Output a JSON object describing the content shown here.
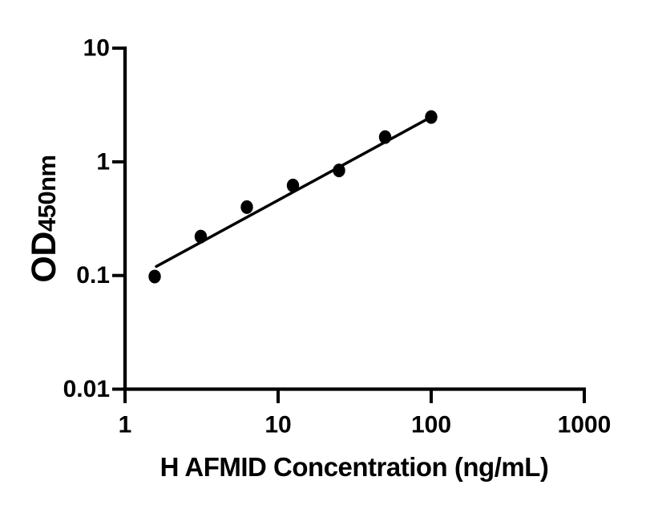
{
  "colors": {
    "ink": "#000000",
    "background": "#ffffff"
  },
  "chart_data": {
    "type": "scatter",
    "title": "",
    "xlabel": "H AFMID Concentration (ng/mL)",
    "ylabel_base": "OD",
    "ylabel_subscript": "450nm",
    "x_scale": "log10",
    "y_scale": "log10",
    "xlim": [
      1,
      1000
    ],
    "ylim": [
      0.01,
      10
    ],
    "grid": false,
    "legend": false,
    "x_ticks": [
      {
        "value": 1,
        "label": "1"
      },
      {
        "value": 10,
        "label": "10"
      },
      {
        "value": 100,
        "label": "100"
      },
      {
        "value": 1000,
        "label": "1000"
      }
    ],
    "y_ticks": [
      {
        "value": 0.01,
        "label": "0.01"
      },
      {
        "value": 0.1,
        "label": "0.1"
      },
      {
        "value": 1,
        "label": "1"
      },
      {
        "value": 10,
        "label": "10"
      }
    ],
    "series": [
      {
        "name": "standard-points",
        "type": "scatter",
        "marker": "filled-circle",
        "color": "#000000",
        "points": [
          {
            "x": 1.5625,
            "y": 0.098
          },
          {
            "x": 3.125,
            "y": 0.22
          },
          {
            "x": 6.25,
            "y": 0.4
          },
          {
            "x": 12.5,
            "y": 0.62
          },
          {
            "x": 25,
            "y": 0.84
          },
          {
            "x": 50,
            "y": 1.65
          },
          {
            "x": 100,
            "y": 2.48
          }
        ]
      },
      {
        "name": "fit-line",
        "type": "line",
        "color": "#000000",
        "points": [
          {
            "x": 1.6,
            "y": 0.12
          },
          {
            "x": 100,
            "y": 2.48
          }
        ]
      }
    ]
  }
}
